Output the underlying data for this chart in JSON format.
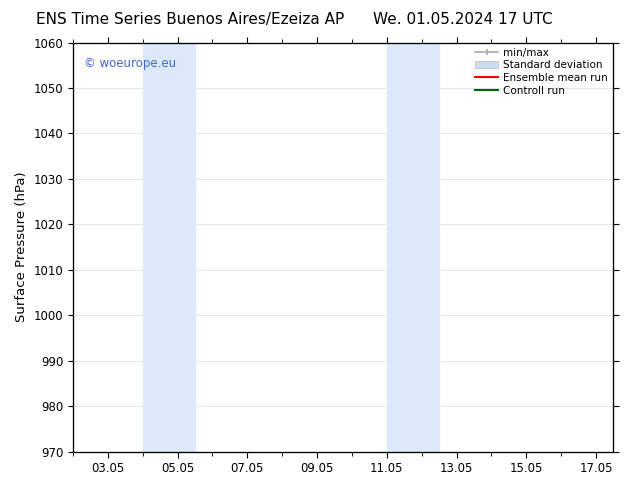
{
  "title_left": "ENS Time Series Buenos Aires/Ezeiza AP",
  "title_right": "We. 01.05.2024 17 UTC",
  "ylabel": "Surface Pressure (hPa)",
  "ylim": [
    970,
    1060
  ],
  "yticks": [
    970,
    980,
    990,
    1000,
    1010,
    1020,
    1030,
    1040,
    1050,
    1060
  ],
  "xmin": 2.0,
  "xmax": 17.5,
  "xtick_labels": [
    "03.05",
    "05.05",
    "07.05",
    "09.05",
    "11.05",
    "13.05",
    "15.05",
    "17.05"
  ],
  "xtick_positions": [
    3,
    5,
    7,
    9,
    11,
    13,
    15,
    17
  ],
  "shaded_bands": [
    {
      "x_start": 4.0,
      "x_end": 5.5
    },
    {
      "x_start": 11.0,
      "x_end": 12.5
    }
  ],
  "shaded_color": "#dce9f8",
  "background_color": "#ffffff",
  "watermark_text": "© woeurope.eu",
  "watermark_color": "#4466cc",
  "legend_items": [
    {
      "label": "min/max",
      "color": "#aaaaaa",
      "lw": 1.5
    },
    {
      "label": "Standard deviation",
      "color": "#ccddef",
      "lw": 6
    },
    {
      "label": "Ensemble mean run",
      "color": "#ff0000",
      "lw": 1.5
    },
    {
      "label": "Controll run",
      "color": "#008000",
      "lw": 1.5
    }
  ],
  "title_fontsize": 11,
  "tick_fontsize": 8.5,
  "ylabel_fontsize": 9.5
}
